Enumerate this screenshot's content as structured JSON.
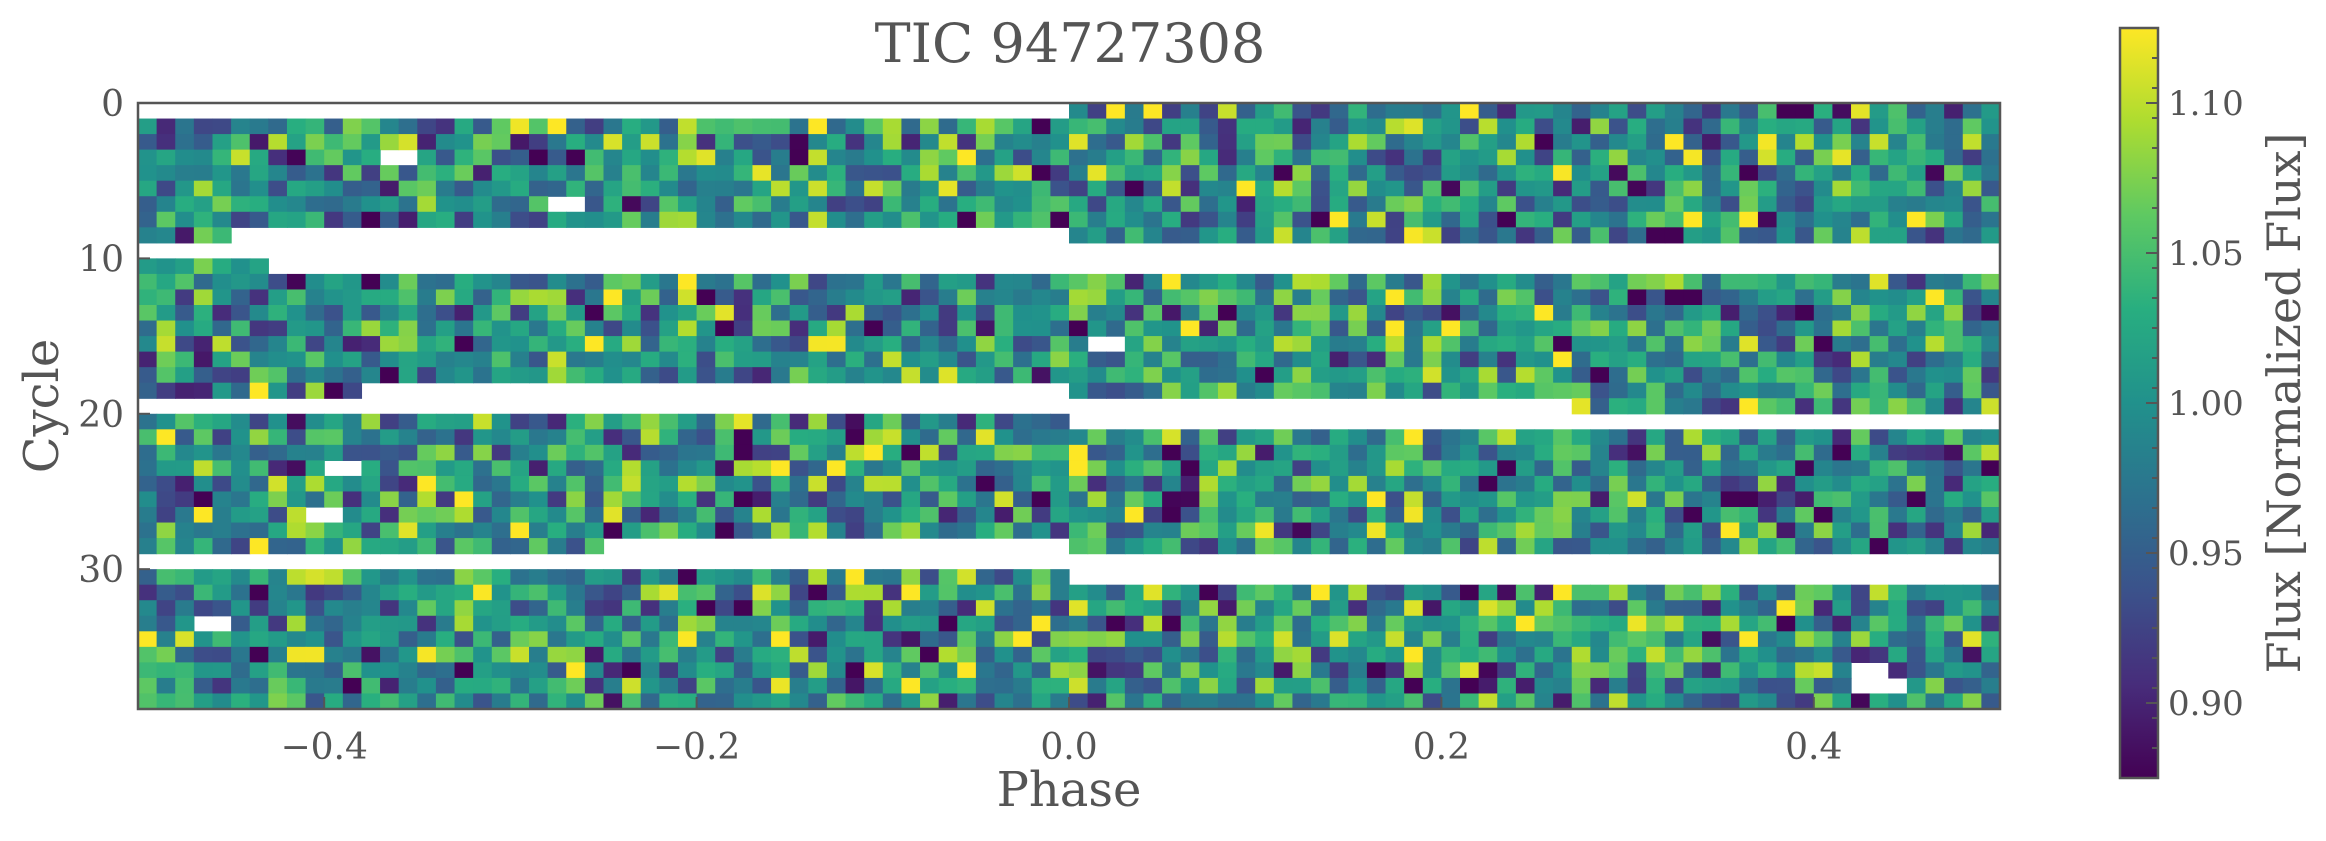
{
  "chart_data": {
    "type": "heatmap",
    "title": "TIC 94727308",
    "xlabel": "Phase",
    "ylabel": "Cycle",
    "xlim": [
      -0.5,
      0.5
    ],
    "ylim": [
      39,
      0
    ],
    "x_ticks": [
      -0.4,
      -0.2,
      0.0,
      0.2,
      0.4
    ],
    "x_tick_labels": [
      "−0.4",
      "−0.2",
      "0.0",
      "0.2",
      "0.4"
    ],
    "y_ticks": [
      0,
      10,
      20,
      30
    ],
    "y_tick_labels": [
      "0",
      "10",
      "20",
      "30"
    ],
    "n_cycles": 39,
    "n_phase_bins": 100,
    "colorbar": {
      "label": "Flux [Normalized Flux]",
      "range": [
        0.875,
        1.125
      ],
      "ticks": [
        0.9,
        0.95,
        1.0,
        1.05,
        1.1
      ],
      "tick_labels": [
        "0.90",
        "0.95",
        "1.00",
        "1.05",
        "1.10"
      ],
      "colormap": "viridis"
    },
    "flux_distribution": {
      "mean": 1.0,
      "approx_spread": 0.06
    },
    "no_data": [
      {
        "cycles": [
          0,
          0
        ],
        "phase": [
          -0.5,
          0.0
        ]
      },
      {
        "cycles": [
          8,
          8
        ],
        "phase": [
          -0.45,
          0.0
        ]
      },
      {
        "cycles": [
          9,
          9
        ],
        "phase": [
          -0.5,
          0.5
        ]
      },
      {
        "cycles": [
          10,
          10
        ],
        "phase": [
          -0.43,
          0.5
        ]
      },
      {
        "cycles": [
          18,
          18
        ],
        "phase": [
          -0.38,
          0.0
        ]
      },
      {
        "cycles": [
          19,
          19
        ],
        "phase": [
          -0.5,
          0.27
        ]
      },
      {
        "cycles": [
          20,
          20
        ],
        "phase": [
          0.0,
          0.5
        ]
      },
      {
        "cycles": [
          28,
          28
        ],
        "phase": [
          -0.25,
          0.0
        ]
      },
      {
        "cycles": [
          29,
          29
        ],
        "phase": [
          -0.5,
          0.5
        ]
      },
      {
        "cycles": [
          30,
          30
        ],
        "phase": [
          0.0,
          0.5
        ]
      },
      {
        "cycles": [
          3,
          3
        ],
        "phase": [
          -0.365,
          -0.345
        ]
      },
      {
        "cycles": [
          6,
          6
        ],
        "phase": [
          -0.275,
          -0.255
        ]
      },
      {
        "cycles": [
          15,
          15
        ],
        "phase": [
          0.015,
          0.035
        ]
      },
      {
        "cycles": [
          23,
          23
        ],
        "phase": [
          -0.395,
          -0.375
        ]
      },
      {
        "cycles": [
          26,
          26
        ],
        "phase": [
          -0.405,
          -0.385
        ]
      },
      {
        "cycles": [
          33,
          33
        ],
        "phase": [
          -0.465,
          -0.445
        ]
      },
      {
        "cycles": [
          36,
          36
        ],
        "phase": [
          0.42,
          0.44
        ]
      },
      {
        "cycles": [
          37,
          37
        ],
        "phase": [
          0.42,
          0.45
        ]
      }
    ]
  }
}
